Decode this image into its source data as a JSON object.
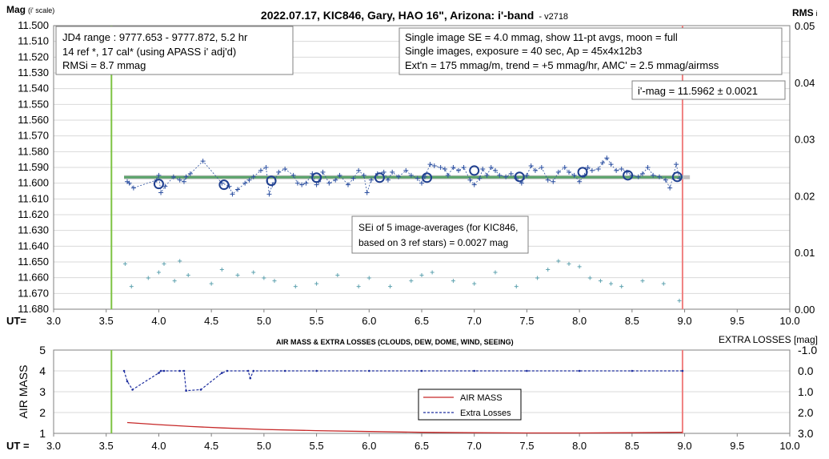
{
  "chart_data": [
    {
      "type": "scatter",
      "title": "2022.07.17, KIC846, Gary, HAO 16\", Arizona: i'-band",
      "version": "- v2718",
      "ylabel_left": "Mag",
      "ylabel_left_sub": "(i' scale)",
      "ylabel_right": "RMS",
      "ylabel_right_sub": "i",
      "xlabel": "UT=",
      "xlim": [
        3.0,
        10.0
      ],
      "ylim": [
        11.5,
        11.68
      ],
      "y_inverted": true,
      "yright_lim": [
        0.0,
        0.05
      ],
      "x_ticks": [
        "3.0",
        "3.5",
        "4.0",
        "4.5",
        "5.0",
        "5.5",
        "6.0",
        "6.5",
        "7.0",
        "7.5",
        "8.0",
        "8.5",
        "9.0",
        "9.5",
        "10.0"
      ],
      "y_ticks": [
        "11.500",
        "11.510",
        "11.520",
        "11.530",
        "11.540",
        "11.550",
        "11.560",
        "11.570",
        "11.580",
        "11.590",
        "11.600",
        "11.610",
        "11.620",
        "11.630",
        "11.640",
        "11.650",
        "11.660",
        "11.670",
        "11.680"
      ],
      "yright_ticks": [
        "0.05",
        "0.04",
        "0.03",
        "0.02",
        "0.01",
        "0.00"
      ],
      "grid": true,
      "vlines": [
        {
          "x": 3.55,
          "color": "#7dc242"
        },
        {
          "x": 8.98,
          "color": "#f08080"
        }
      ],
      "mean_line": {
        "y": 11.5962,
        "x_range": [
          3.67,
          8.98
        ],
        "color": "#5aa36a"
      },
      "ref_line": {
        "y": 11.5962,
        "x_range": [
          3.67,
          9.05
        ],
        "color": "#c0c0c0"
      },
      "annotations": {
        "box_left": [
          "JD4 range : 9777.653 - 9777.872, 5.2  hr",
          "14 ref *, 17 cal* (using APASS i' adj'd)",
          "RMSi = 8.7 mmag"
        ],
        "box_right": [
          "Single image SE = 4.0 mmag, show 11-pt avgs, moon = full",
          "Single images, exposure = 40 sec, Ap = 45x4x12b3",
          "Ext'n = 175 mmag/m, trend = +5 mmag/hr, AMC' = 2.5 mmag/airmss"
        ],
        "mag_result": "i'-mag = 11.5962 ± 0.0021",
        "sei_note": [
          "SEi of 5 image-averages (for KIC846,",
          "based on 3 ref stars) = 0.0027 mag"
        ]
      },
      "series": [
        {
          "name": "",
          "kind": "single-image",
          "color": "#2b4fa0",
          "points": [
            [
              3.7,
              11.599
            ],
            [
              3.72,
              11.6
            ],
            [
              3.76,
              11.603
            ],
            [
              3.98,
              11.598
            ],
            [
              4.0,
              11.595
            ],
            [
              4.02,
              11.606
            ],
            [
              4.06,
              11.602
            ],
            [
              4.14,
              11.596
            ],
            [
              4.2,
              11.598
            ],
            [
              4.24,
              11.599
            ],
            [
              4.26,
              11.596
            ],
            [
              4.3,
              11.594
            ],
            [
              4.42,
              11.586
            ],
            [
              4.6,
              11.6
            ],
            [
              4.67,
              11.602
            ],
            [
              4.7,
              11.607
            ],
            [
              4.75,
              11.604
            ],
            [
              4.82,
              11.6
            ],
            [
              4.86,
              11.598
            ],
            [
              4.9,
              11.596
            ],
            [
              4.97,
              11.592
            ],
            [
              5.02,
              11.59
            ],
            [
              5.05,
              11.607
            ],
            [
              5.08,
              11.601
            ],
            [
              5.14,
              11.593
            ],
            [
              5.2,
              11.591
            ],
            [
              5.28,
              11.595
            ],
            [
              5.32,
              11.6
            ],
            [
              5.36,
              11.601
            ],
            [
              5.4,
              11.6
            ],
            [
              5.46,
              11.594
            ],
            [
              5.5,
              11.601
            ],
            [
              5.52,
              11.599
            ],
            [
              5.56,
              11.593
            ],
            [
              5.62,
              11.6
            ],
            [
              5.68,
              11.598
            ],
            [
              5.72,
              11.595
            ],
            [
              5.8,
              11.601
            ],
            [
              5.85,
              11.597
            ],
            [
              5.9,
              11.592
            ],
            [
              5.95,
              11.595
            ],
            [
              5.98,
              11.606
            ],
            [
              6.02,
              11.598
            ],
            [
              6.08,
              11.594
            ],
            [
              6.14,
              11.593
            ],
            [
              6.18,
              11.598
            ],
            [
              6.22,
              11.593
            ],
            [
              6.28,
              11.596
            ],
            [
              6.35,
              11.592
            ],
            [
              6.4,
              11.595
            ],
            [
              6.46,
              11.597
            ],
            [
              6.5,
              11.6
            ],
            [
              6.53,
              11.596
            ],
            [
              6.58,
              11.588
            ],
            [
              6.62,
              11.589
            ],
            [
              6.68,
              11.59
            ],
            [
              6.72,
              11.591
            ],
            [
              6.75,
              11.595
            ],
            [
              6.8,
              11.59
            ],
            [
              6.85,
              11.592
            ],
            [
              6.9,
              11.59
            ],
            [
              6.96,
              11.598
            ],
            [
              7.0,
              11.601
            ],
            [
              7.05,
              11.597
            ],
            [
              7.08,
              11.591
            ],
            [
              7.12,
              11.595
            ],
            [
              7.16,
              11.59
            ],
            [
              7.2,
              11.592
            ],
            [
              7.24,
              11.595
            ],
            [
              7.3,
              11.596
            ],
            [
              7.35,
              11.594
            ],
            [
              7.4,
              11.597
            ],
            [
              7.45,
              11.6
            ],
            [
              7.5,
              11.595
            ],
            [
              7.54,
              11.589
            ],
            [
              7.58,
              11.592
            ],
            [
              7.64,
              11.59
            ],
            [
              7.7,
              11.598
            ],
            [
              7.75,
              11.599
            ],
            [
              7.8,
              11.593
            ],
            [
              7.86,
              11.59
            ],
            [
              7.9,
              11.593
            ],
            [
              7.95,
              11.595
            ],
            [
              8.0,
              11.599
            ],
            [
              8.05,
              11.595
            ],
            [
              8.08,
              11.59
            ],
            [
              8.12,
              11.592
            ],
            [
              8.18,
              11.591
            ],
            [
              8.22,
              11.587
            ],
            [
              8.26,
              11.584
            ],
            [
              8.3,
              11.588
            ],
            [
              8.35,
              11.592
            ],
            [
              8.4,
              11.591
            ],
            [
              8.45,
              11.593
            ],
            [
              8.5,
              11.595
            ],
            [
              8.56,
              11.596
            ],
            [
              8.6,
              11.594
            ],
            [
              8.65,
              11.59
            ],
            [
              8.7,
              11.595
            ],
            [
              8.76,
              11.596
            ],
            [
              8.82,
              11.598
            ],
            [
              8.86,
              11.603
            ],
            [
              8.92,
              11.588
            ],
            [
              8.95,
              11.597
            ]
          ]
        },
        {
          "name": "",
          "kind": "11-pt averages",
          "color": "#1f3f8f",
          "points": [
            [
              4.0,
              11.6005
            ],
            [
              4.62,
              11.601
            ],
            [
              5.07,
              11.5985
            ],
            [
              5.5,
              11.5965
            ],
            [
              6.1,
              11.5965
            ],
            [
              6.55,
              11.5965
            ],
            [
              7.0,
              11.592
            ],
            [
              7.43,
              11.596
            ],
            [
              8.03,
              11.593
            ],
            [
              8.46,
              11.595
            ],
            [
              8.93,
              11.596
            ]
          ]
        },
        {
          "name": "",
          "kind": "RMS (right axis)",
          "color": "#5fa3b0",
          "points": [
            [
              3.68,
              0.008
            ],
            [
              3.74,
              0.004
            ],
            [
              3.9,
              0.0055
            ],
            [
              4.0,
              0.0065
            ],
            [
              4.05,
              0.008
            ],
            [
              4.15,
              0.005
            ],
            [
              4.2,
              0.0085
            ],
            [
              4.28,
              0.006
            ],
            [
              4.5,
              0.0045
            ],
            [
              4.6,
              0.007
            ],
            [
              4.75,
              0.006
            ],
            [
              4.9,
              0.0065
            ],
            [
              5.0,
              0.0055
            ],
            [
              5.1,
              0.005
            ],
            [
              5.3,
              0.004
            ],
            [
              5.5,
              0.0045
            ],
            [
              5.7,
              0.006
            ],
            [
              5.9,
              0.004
            ],
            [
              6.0,
              0.0055
            ],
            [
              6.2,
              0.004
            ],
            [
              6.4,
              0.005
            ],
            [
              6.5,
              0.006
            ],
            [
              6.6,
              0.0065
            ],
            [
              6.8,
              0.005
            ],
            [
              7.0,
              0.0045
            ],
            [
              7.2,
              0.0065
            ],
            [
              7.4,
              0.004
            ],
            [
              7.6,
              0.0055
            ],
            [
              7.7,
              0.007
            ],
            [
              7.8,
              0.0085
            ],
            [
              7.9,
              0.008
            ],
            [
              8.0,
              0.0075
            ],
            [
              8.1,
              0.0055
            ],
            [
              8.2,
              0.005
            ],
            [
              8.3,
              0.0045
            ],
            [
              8.4,
              0.004
            ],
            [
              8.6,
              0.005
            ],
            [
              8.8,
              0.0045
            ],
            [
              8.95,
              0.0015
            ]
          ]
        }
      ]
    },
    {
      "type": "line",
      "title": "AIR MASS & EXTRA LOSSES (CLOUDS, DEW, DOME, WIND, SEEING)",
      "ylabel_left": "AIR MASS",
      "ylabel_right": "EXTRA LOSSES [mag]",
      "xlabel": "UT =",
      "xlim": [
        3.0,
        10.0
      ],
      "ylim": [
        1,
        5
      ],
      "yright_lim": [
        -1.0,
        3.0
      ],
      "yright_inverted": true,
      "x_ticks": [
        "3.0",
        "3.5",
        "4.0",
        "4.5",
        "5.0",
        "5.5",
        "6.0",
        "6.5",
        "7.0",
        "7.5",
        "8.0",
        "8.5",
        "9.0",
        "9.5",
        "10.0"
      ],
      "y_ticks": [
        "5",
        "4",
        "3",
        "2",
        "1"
      ],
      "yright_ticks": [
        "-1.0",
        "0.0",
        "1.0",
        "2.0",
        "3.0"
      ],
      "grid": true,
      "legend": {
        "position": "center",
        "entries": [
          "AIR MASS",
          "Extra Losses"
        ]
      },
      "series": [
        {
          "name": "AIR MASS",
          "color": "#c62828",
          "x": [
            3.7,
            4.0,
            4.3,
            4.6,
            5.0,
            5.5,
            6.0,
            6.5,
            7.0,
            7.5,
            8.0,
            8.5,
            8.98
          ],
          "values": [
            1.52,
            1.42,
            1.33,
            1.26,
            1.19,
            1.13,
            1.09,
            1.05,
            1.03,
            1.02,
            1.02,
            1.03,
            1.05
          ]
        },
        {
          "name": "Extra Losses",
          "color": "#1f2f9f",
          "x": [
            3.67,
            3.7,
            3.75,
            4.0,
            4.02,
            4.05,
            4.2,
            4.24,
            4.26,
            4.4,
            4.6,
            4.65,
            4.85,
            4.87,
            4.9,
            5.2,
            5.5,
            6.0,
            6.5,
            7.0,
            7.5,
            8.0,
            8.5,
            8.98
          ],
          "values": [
            0.0,
            0.5,
            0.9,
            0.1,
            0.0,
            0.0,
            0.0,
            0.0,
            0.95,
            0.9,
            0.1,
            0.0,
            0.0,
            0.35,
            0.0,
            0.0,
            0.0,
            0.0,
            0.0,
            0.0,
            0.0,
            0.0,
            0.0,
            0.0
          ]
        }
      ],
      "vlines": [
        {
          "x": 3.55,
          "color": "#7dc242"
        },
        {
          "x": 8.98,
          "color": "#f08080"
        }
      ]
    }
  ]
}
